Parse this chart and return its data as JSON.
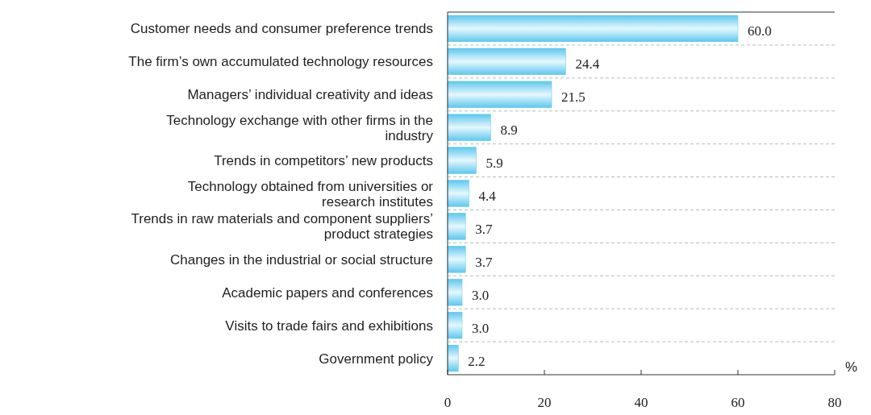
{
  "chart_data": {
    "type": "bar",
    "orientation": "horizontal",
    "xlabel": "%",
    "categories": [
      "Customer needs and consumer preference trends",
      "The firm’s own accumulated technology resources",
      "Managers’ individual creativity and ideas",
      "Technology exchange with other firms in the industry",
      "Trends in competitors’ new products",
      "Technology obtained from universities or research institutes",
      "Trends in raw materials and component suppliers’ product strategies",
      "Changes in the industrial or social structure",
      "Academic papers and conferences",
      "Visits to trade fairs and exhibitions",
      "Government policy"
    ],
    "values": [
      60.0,
      24.4,
      21.5,
      8.9,
      5.9,
      4.4,
      3.7,
      3.7,
      3.0,
      3.0,
      2.2
    ],
    "value_labels": [
      "60.0",
      "24.4",
      "21.5",
      "8.9",
      "5.9",
      "4.4",
      "3.7",
      "3.7",
      "3.0",
      "3.0",
      "2.2"
    ],
    "color": "#5cc8f0",
    "xlim": [
      0,
      80
    ],
    "xticks": [
      0,
      20,
      40,
      60,
      80
    ],
    "grid": true
  }
}
